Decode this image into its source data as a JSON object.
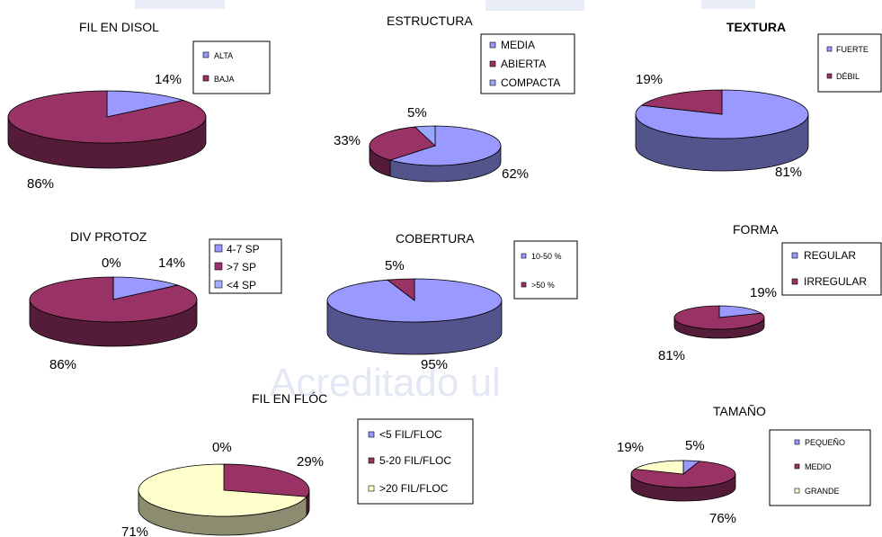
{
  "chart_data": [
    {
      "type": "pie",
      "title": "FIL EN DISOL",
      "categories": [
        "ALTA",
        "BAJA"
      ],
      "values": [
        14,
        86
      ],
      "labels": [
        "14%",
        "86%"
      ],
      "colors": [
        "#9999ff",
        "#993366"
      ],
      "legend": "right"
    },
    {
      "type": "pie",
      "title": "ESTRUCTURA",
      "categories": [
        "MEDIA",
        "ABIERTA",
        "COMPACTA"
      ],
      "values": [
        62,
        33,
        5
      ],
      "labels": [
        "62%",
        "33%",
        "5%"
      ],
      "colors": [
        "#9999ff",
        "#993366",
        "#99a8ff"
      ],
      "legend": "right"
    },
    {
      "type": "pie",
      "title": "TEXTURA",
      "categories": [
        "FUERTE",
        "DÉBIL"
      ],
      "values": [
        81,
        19
      ],
      "labels": [
        "81%",
        "19%"
      ],
      "colors": [
        "#9999ff",
        "#993366"
      ],
      "legend": "right"
    },
    {
      "type": "pie",
      "title": "DIV PROTOZ",
      "categories": [
        "4-7 SP",
        ">7 SP",
        "<4 SP"
      ],
      "values": [
        14,
        86,
        0
      ],
      "labels": [
        "14%",
        "86%",
        "0%"
      ],
      "colors": [
        "#9999ff",
        "#993366",
        "#a3b0ff"
      ],
      "legend": "right"
    },
    {
      "type": "pie",
      "title": "COBERTURA",
      "categories": [
        "10-50 %",
        ">50 %"
      ],
      "values": [
        95,
        5
      ],
      "labels": [
        "95%",
        "5%"
      ],
      "colors": [
        "#9999ff",
        "#993366"
      ],
      "legend": "right"
    },
    {
      "type": "pie",
      "title": "FORMA",
      "categories": [
        "REGULAR",
        "IRREGULAR"
      ],
      "values": [
        19,
        81
      ],
      "labels": [
        "19%",
        "81%"
      ],
      "colors": [
        "#9999ff",
        "#993366"
      ],
      "legend": "right"
    },
    {
      "type": "pie",
      "title": "FIL EN FLÓC",
      "categories": [
        "<5 FIL/FLOC",
        "5-20 FIL/FLOC",
        ">20 FIL/FLOC"
      ],
      "values": [
        0,
        29,
        71
      ],
      "labels": [
        "0%",
        "29%",
        "71%"
      ],
      "colors": [
        "#9999ff",
        "#993366",
        "#ffffcc"
      ],
      "legend": "right"
    },
    {
      "type": "pie",
      "title": "TAMAÑO",
      "categories": [
        "PEQUEÑO",
        "MEDIO",
        "GRANDE"
      ],
      "values": [
        5,
        76,
        19
      ],
      "labels": [
        "5%",
        "76%",
        "19%"
      ],
      "colors": [
        "#9999ff",
        "#993366",
        "#ffffcc"
      ],
      "legend": "right"
    }
  ],
  "watermark": "Acreditado ul"
}
